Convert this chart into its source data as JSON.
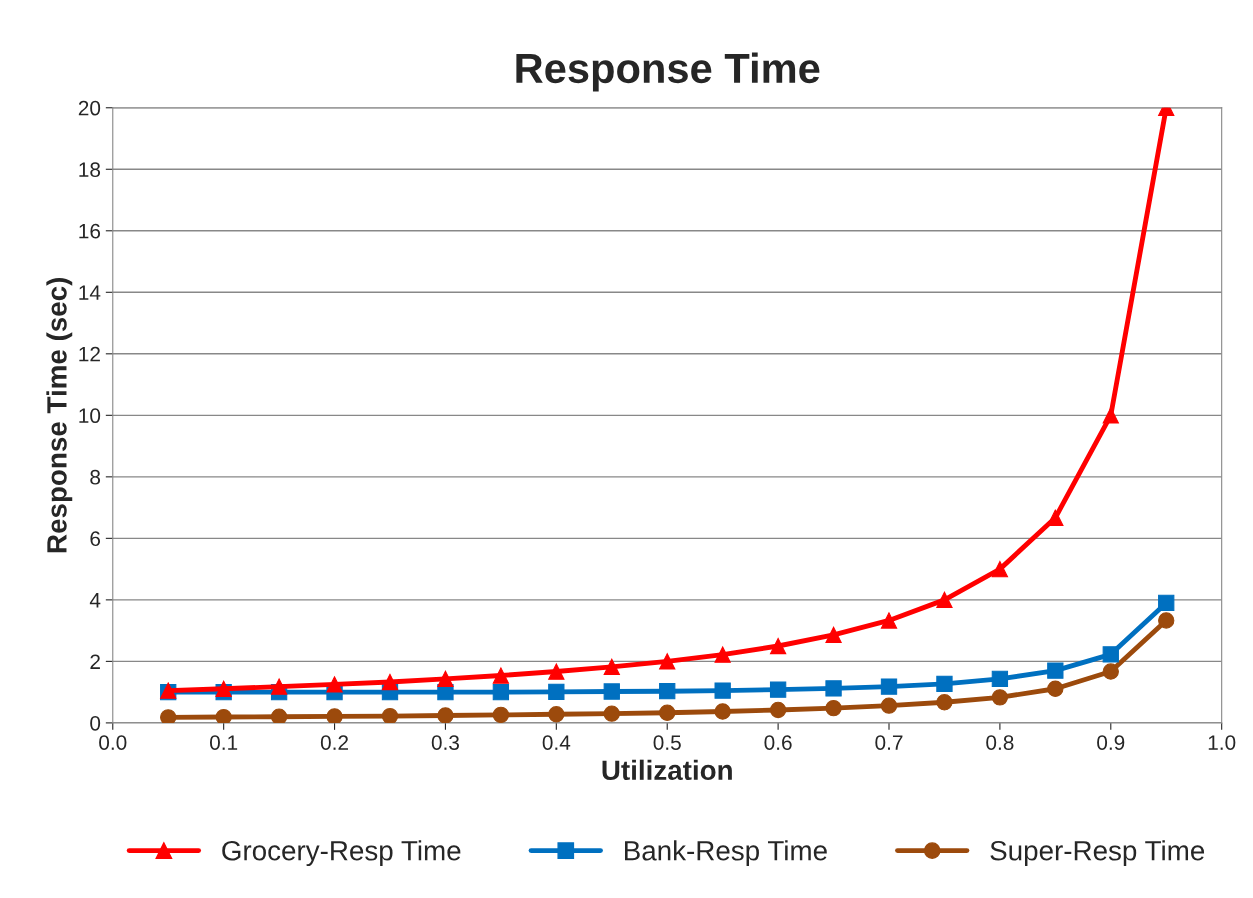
{
  "chart_data": {
    "type": "line",
    "title": "Response Time",
    "xlabel": "Utilization",
    "ylabel": "Response Time (sec)",
    "x": [
      0.05,
      0.1,
      0.15,
      0.2,
      0.25,
      0.3,
      0.35,
      0.4,
      0.45,
      0.5,
      0.55,
      0.6,
      0.65,
      0.7,
      0.75,
      0.8,
      0.85,
      0.9,
      0.95
    ],
    "series": [
      {
        "name": "Grocery-Resp Time",
        "color": "#ff0000",
        "marker": "triangle",
        "values": [
          1.05,
          1.11,
          1.18,
          1.25,
          1.33,
          1.43,
          1.54,
          1.67,
          1.82,
          2.0,
          2.22,
          2.5,
          2.86,
          3.33,
          4.0,
          5.0,
          6.67,
          10.0,
          20.0
        ]
      },
      {
        "name": "Bank-Resp Time",
        "color": "#0070c0",
        "marker": "square",
        "values": [
          1.0,
          1.0,
          1.0,
          1.0,
          1.0,
          1.0,
          1.0,
          1.01,
          1.02,
          1.03,
          1.05,
          1.08,
          1.12,
          1.18,
          1.27,
          1.43,
          1.7,
          2.23,
          3.9
        ]
      },
      {
        "name": "Super-Resp Time",
        "color": "#9c4a0c",
        "marker": "circle",
        "values": [
          0.18,
          0.19,
          0.2,
          0.21,
          0.22,
          0.24,
          0.26,
          0.28,
          0.3,
          0.33,
          0.37,
          0.42,
          0.48,
          0.56,
          0.67,
          0.83,
          1.11,
          1.67,
          3.33
        ]
      }
    ],
    "xlim": [
      0.0,
      1.0
    ],
    "xticks": [
      {
        "value": 0,
        "label": "0.0"
      },
      0.1,
      0.2,
      0.3,
      0.4,
      0.5,
      0.6,
      0.7,
      0.8,
      0.9,
      {
        "value": 1,
        "label": "1.0"
      }
    ],
    "ylim": [
      0,
      20
    ],
    "yticks": [
      0,
      2,
      4,
      6,
      8,
      10,
      12,
      14,
      16,
      18,
      20
    ],
    "grid": "y",
    "legend": "bottom",
    "line_style": "solid"
  }
}
